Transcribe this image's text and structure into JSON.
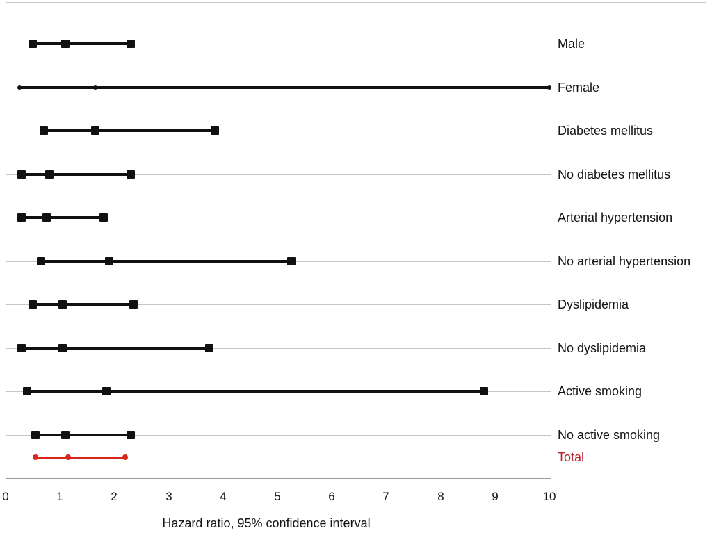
{
  "chart_data": {
    "type": "scatter",
    "subtype": "forest-plot",
    "title": "",
    "xlabel": "Hazard ratio, 95% confidence interval",
    "ylabel": "",
    "xlim": [
      0,
      10
    ],
    "x_ticks": [
      0,
      1,
      2,
      3,
      4,
      5,
      6,
      7,
      8,
      9,
      10
    ],
    "reference_line_x": 1,
    "grid": true,
    "legend": "none",
    "rows": [
      {
        "label": "Male",
        "estimate": 1.1,
        "ci_low": 0.5,
        "ci_high": 2.3,
        "color": "#111111",
        "label_color": "#141414",
        "marker": "square",
        "ci_high_clipped": false
      },
      {
        "label": "Female",
        "estimate": 1.65,
        "ci_low": 0.25,
        "ci_high": 10.0,
        "color": "#111111",
        "label_color": "#141414",
        "marker": "dot",
        "ci_high_clipped": true
      },
      {
        "label": "Diabetes mellitus",
        "estimate": 1.65,
        "ci_low": 0.7,
        "ci_high": 3.85,
        "color": "#111111",
        "label_color": "#141414",
        "marker": "square",
        "ci_high_clipped": false
      },
      {
        "label": "No diabetes mellitus",
        "estimate": 0.8,
        "ci_low": 0.3,
        "ci_high": 2.3,
        "color": "#111111",
        "label_color": "#141414",
        "marker": "square",
        "ci_high_clipped": false
      },
      {
        "label": "Arterial hypertension",
        "estimate": 0.75,
        "ci_low": 0.3,
        "ci_high": 1.8,
        "color": "#111111",
        "label_color": "#141414",
        "marker": "square",
        "ci_high_clipped": false
      },
      {
        "label": "No arterial hypertension",
        "estimate": 1.9,
        "ci_low": 0.65,
        "ci_high": 5.25,
        "color": "#111111",
        "label_color": "#141414",
        "marker": "square",
        "ci_high_clipped": false
      },
      {
        "label": "Dyslipidemia",
        "estimate": 1.05,
        "ci_low": 0.5,
        "ci_high": 2.35,
        "color": "#111111",
        "label_color": "#141414",
        "marker": "square",
        "ci_high_clipped": false
      },
      {
        "label": "No dyslipidemia",
        "estimate": 1.05,
        "ci_low": 0.3,
        "ci_high": 3.75,
        "color": "#111111",
        "label_color": "#141414",
        "marker": "square",
        "ci_high_clipped": false
      },
      {
        "label": "Active smoking",
        "estimate": 1.85,
        "ci_low": 0.4,
        "ci_high": 8.8,
        "color": "#111111",
        "label_color": "#141414",
        "marker": "square",
        "ci_high_clipped": false
      },
      {
        "label": "No active smoking",
        "estimate": 1.1,
        "ci_low": 0.55,
        "ci_high": 2.3,
        "color": "#111111",
        "label_color": "#141414",
        "marker": "square",
        "ci_high_clipped": false
      },
      {
        "label": "Total",
        "estimate": 1.15,
        "ci_low": 0.55,
        "ci_high": 2.2,
        "color": "#d8261a",
        "label_color": "#bb2230",
        "marker": "dot",
        "ci_high_clipped": false
      }
    ],
    "colors": {
      "ci_black": "#111111",
      "ci_total_red": "#d8261a",
      "total_label_red": "#bb2230",
      "gridline": "#c6c6c6",
      "reference_line": "#b3b3b3",
      "axis_line": "#9a9a9a",
      "text": "#141414"
    }
  }
}
